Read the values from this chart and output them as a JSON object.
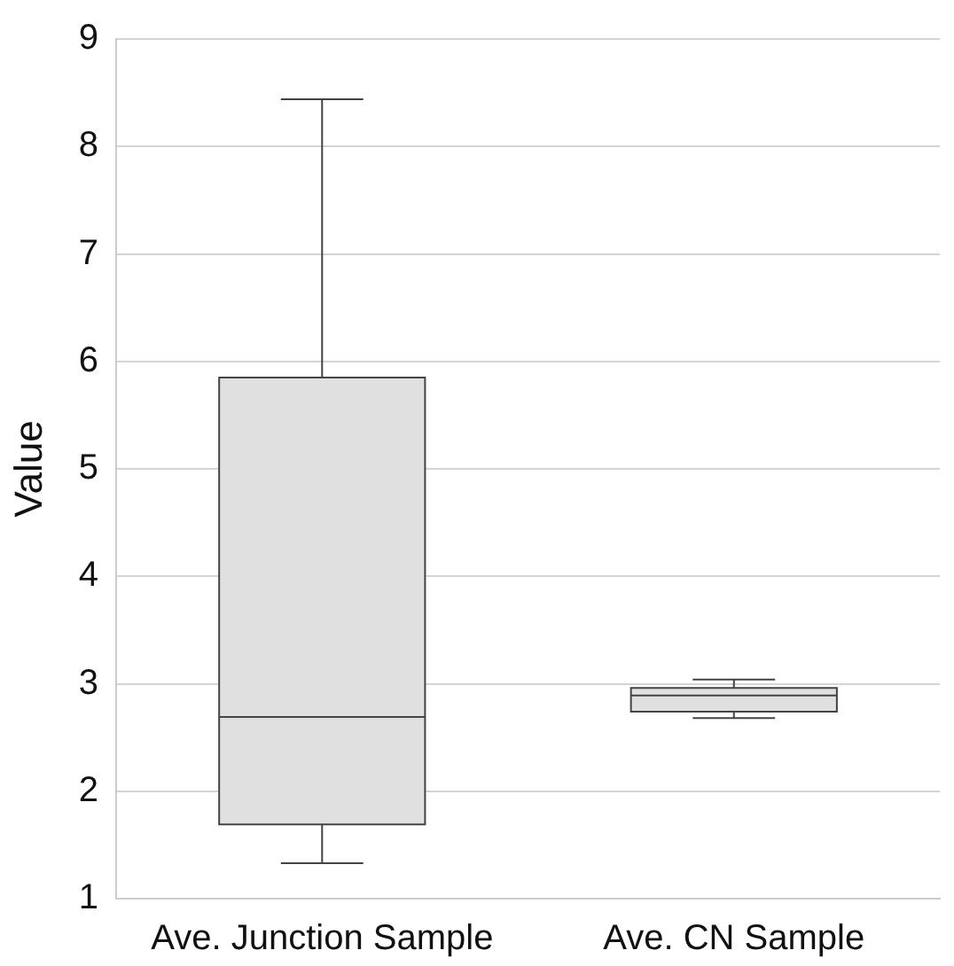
{
  "chart_data": {
    "type": "box",
    "ylabel": "Value",
    "categories": [
      "Ave. Junction Sample",
      "Ave. CN Sample"
    ],
    "boxes": [
      {
        "low": 1.33,
        "q1": 1.69,
        "median": 2.69,
        "q3": 5.85,
        "high": 8.44
      },
      {
        "low": 2.68,
        "q1": 2.74,
        "median": 2.89,
        "q3": 2.96,
        "high": 3.04
      }
    ],
    "color": "#e0e0e0",
    "ylim": [
      1,
      9
    ],
    "yticks": [
      1,
      2,
      3,
      4,
      5,
      6,
      7,
      8,
      9
    ],
    "grid": "y"
  }
}
